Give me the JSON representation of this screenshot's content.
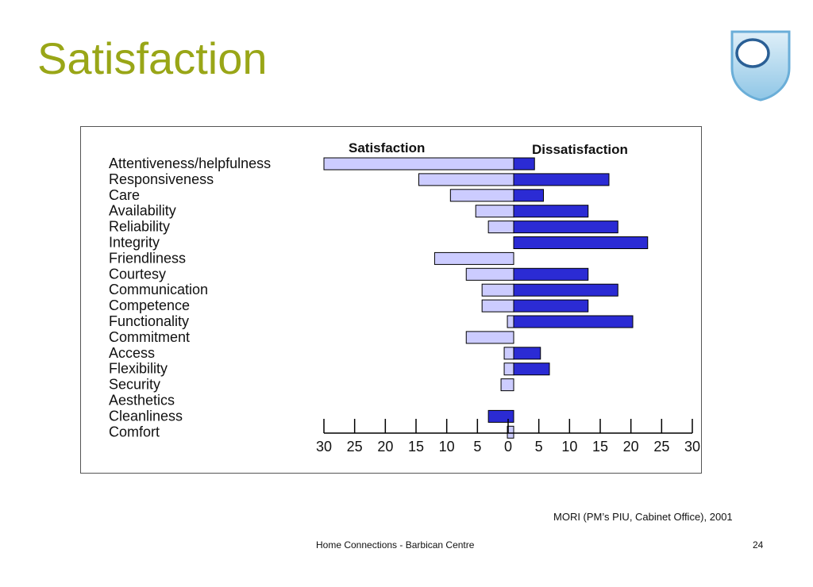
{
  "slide": {
    "title": "Satisfaction",
    "source": "MORI (PM’s PIU, Cabinet Office), 2001",
    "footer": "Home Connections - Barbican Centre",
    "page_number": "24"
  },
  "logo": {
    "icon": "open-university-shield-icon"
  },
  "chart_data": {
    "type": "bar",
    "orientation": "horizontal-diverging",
    "categories": [
      "Attentiveness/helpfulness",
      "Responsiveness",
      "Care",
      "Availability",
      "Reliability",
      "Integrity",
      "Friendliness",
      "Courtesy",
      "Communication",
      "Competence",
      "Functionality",
      "Commitment",
      "Access",
      "Flexibility",
      "Security",
      "Aesthetics",
      "Cleanliness",
      "Comfort"
    ],
    "series": [
      {
        "name": "Satisfaction",
        "direction": "left",
        "color": "#ccccff",
        "values": [
          30,
          15,
          10,
          6,
          4,
          0,
          12.5,
          7.5,
          5,
          5,
          1,
          7.5,
          1.5,
          1.5,
          2,
          0,
          0,
          1
        ]
      },
      {
        "name": "Dissatisfaction",
        "direction": "right",
        "color": "#2b2bd4",
        "values": [
          3.5,
          16,
          5,
          12.5,
          17.5,
          22.5,
          0,
          12.5,
          17.5,
          12.5,
          20,
          0,
          4.5,
          6,
          0,
          0,
          0,
          0
        ]
      }
    ],
    "special_bars": [
      {
        "category": "Cleanliness",
        "side": "left",
        "value": 4,
        "color": "#2b2bd4"
      }
    ],
    "xlim_left": [
      0,
      30
    ],
    "xlim_right": [
      0,
      30
    ],
    "x_ticks": [
      "30",
      "25",
      "20",
      "15",
      "10",
      "5",
      "0",
      "5",
      "10",
      "15",
      "20",
      "25",
      "30"
    ],
    "grid": false,
    "legend": "none"
  }
}
